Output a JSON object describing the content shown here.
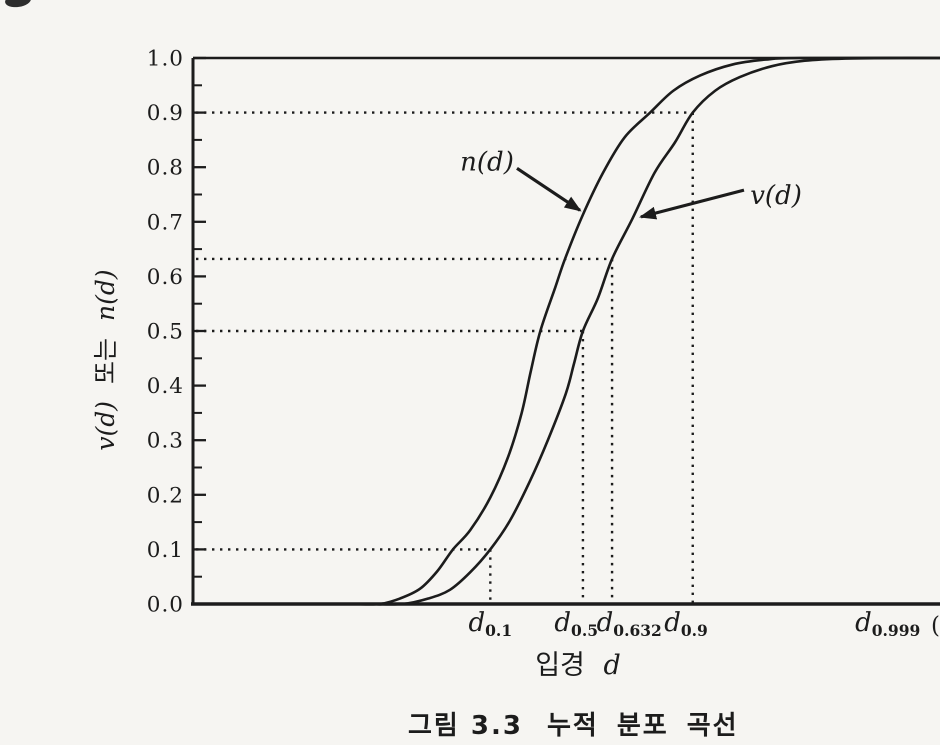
{
  "page": {
    "background_color": "#f6f5f2",
    "ink_color": "#1c1c1c"
  },
  "caption": {
    "label": "그림 3.3",
    "text": "누적 분포 곡선"
  },
  "labels": {
    "y_axis_title": {
      "v": "v(d)",
      "mid": "또는",
      "n": "n(d)"
    },
    "x_axis_title": {
      "korean": "입경",
      "var": "d"
    },
    "right_edge_fragment": "("
  },
  "chart_data": {
    "type": "line",
    "title": "그림 3.3 누적 분포 곡선",
    "xlabel": "입경 d",
    "ylabel": "v(d) 또는 n(d)",
    "ylim": [
      0.0,
      1.0
    ],
    "grid": false,
    "x_axis_numeric": false,
    "x_units": "fraction of visible plot width (particle diameter d, no numeric scale printed)",
    "y_tick_labels": [
      "0.0",
      "0.1",
      "0.2",
      "0.3",
      "0.4",
      "0.5",
      "0.6",
      "0.7",
      "0.8",
      "0.9",
      "1.0"
    ],
    "y_minor_tick_step": 0.05,
    "series": [
      {
        "name": "n(d)",
        "points": [
          [
            0.217,
            0.0
          ],
          [
            0.25,
            0.0
          ],
          [
            0.277,
            0.01
          ],
          [
            0.304,
            0.028
          ],
          [
            0.327,
            0.06
          ],
          [
            0.348,
            0.1
          ],
          [
            0.371,
            0.135
          ],
          [
            0.398,
            0.195
          ],
          [
            0.422,
            0.27
          ],
          [
            0.44,
            0.35
          ],
          [
            0.452,
            0.425
          ],
          [
            0.465,
            0.5
          ],
          [
            0.485,
            0.58
          ],
          [
            0.498,
            0.632
          ],
          [
            0.521,
            0.71
          ],
          [
            0.549,
            0.79
          ],
          [
            0.578,
            0.855
          ],
          [
            0.612,
            0.9
          ],
          [
            0.643,
            0.94
          ],
          [
            0.679,
            0.968
          ],
          [
            0.722,
            0.988
          ],
          [
            0.766,
            0.997
          ],
          [
            0.813,
            1.0
          ],
          [
            1.0,
            1.0
          ]
        ]
      },
      {
        "name": "v(d)",
        "points": [
          [
            0.237,
            0.0
          ],
          [
            0.281,
            0.0
          ],
          [
            0.315,
            0.01
          ],
          [
            0.344,
            0.026
          ],
          [
            0.371,
            0.058
          ],
          [
            0.398,
            0.1
          ],
          [
            0.424,
            0.152
          ],
          [
            0.451,
            0.225
          ],
          [
            0.475,
            0.3
          ],
          [
            0.499,
            0.385
          ],
          [
            0.51,
            0.44
          ],
          [
            0.522,
            0.5
          ],
          [
            0.542,
            0.56
          ],
          [
            0.561,
            0.632
          ],
          [
            0.588,
            0.705
          ],
          [
            0.618,
            0.79
          ],
          [
            0.645,
            0.845
          ],
          [
            0.669,
            0.9
          ],
          [
            0.699,
            0.94
          ],
          [
            0.732,
            0.965
          ],
          [
            0.775,
            0.985
          ],
          [
            0.819,
            0.995
          ],
          [
            0.873,
            0.999
          ],
          [
            0.946,
            1.0
          ],
          [
            1.0,
            1.0
          ]
        ]
      }
    ],
    "quantile_guides": [
      {
        "y": 0.1,
        "x": 0.398,
        "label_base": "d",
        "label_sub": "0.1",
        "label_x": 0.398
      },
      {
        "y": 0.5,
        "x": 0.522,
        "label_base": "d",
        "label_sub": "0.5",
        "label_x": 0.513
      },
      {
        "y": 0.632,
        "x": 0.561,
        "label_base": "d",
        "label_sub": "0.632",
        "label_x": 0.584
      },
      {
        "y": 0.9,
        "x": 0.669,
        "label_base": "d",
        "label_sub": "0.9",
        "label_x": 0.66
      }
    ],
    "extra_x_labels": [
      {
        "label_base": "d",
        "label_sub": "0.999",
        "label_x": 0.93
      }
    ],
    "annotations": [
      {
        "text": "n(d)",
        "text_x": 0.3936,
        "text_y": 0.809,
        "arrow_from_x": 0.4337,
        "arrow_from_y": 0.798,
        "arrow_to_x": 0.518,
        "arrow_to_y": 0.721
      },
      {
        "text": "v(d)",
        "text_x": 0.7805,
        "text_y": 0.747,
        "arrow_from_x": 0.7376,
        "arrow_from_y": 0.758,
        "arrow_to_x": 0.5997,
        "arrow_to_y": 0.709
      }
    ]
  }
}
